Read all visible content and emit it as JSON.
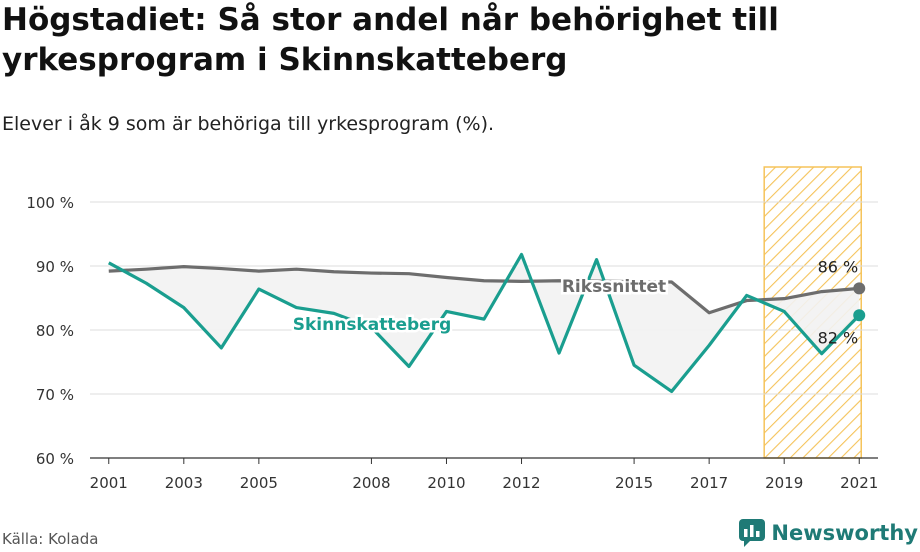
{
  "header": {
    "title": "Högstadiet: Så stor andel når behörighet till yrkesprogram i Skinnskatteberg",
    "subtitle": "Elever i åk 9 som är behöriga till yrkesprogram (%)."
  },
  "footer": {
    "source": "Källa: Kolada",
    "brand": "Newsworthy"
  },
  "colors": {
    "local": "#1a9e8f",
    "national": "#6d6d6d",
    "highlight_hatch": "#f5c35a",
    "fill": "#f2f2f2"
  },
  "chart_data": {
    "type": "line",
    "title": "Högstadiet: Så stor andel når behörighet till yrkesprogram i Skinnskatteberg",
    "subtitle": "Elever i åk 9 som är behöriga till yrkesprogram (%).",
    "ylim": [
      60,
      100
    ],
    "yticks": [
      60,
      70,
      80,
      90,
      100
    ],
    "ytick_labels": [
      "60 %",
      "70 %",
      "80 %",
      "90 %",
      "100 %"
    ],
    "xlim": [
      2000.5,
      2021.5
    ],
    "xticks": [
      2001,
      2003,
      2005,
      2008,
      2010,
      2012,
      2015,
      2017,
      2019,
      2021
    ],
    "xtick_labels": [
      "2001",
      "2003",
      "2005",
      "2008",
      "2010",
      "2012",
      "2015",
      "2017",
      "2019",
      "2021"
    ],
    "grid": "horizontal",
    "highlight_range": [
      2019,
      2021
    ],
    "series": [
      {
        "name": "Rikssnittet",
        "x": [
          2001,
          2002,
          2003,
          2004,
          2005,
          2006,
          2007,
          2008,
          2009,
          2010,
          2011,
          2012,
          2013,
          2016,
          2017,
          2018,
          2019,
          2020,
          2021
        ],
        "values": [
          89.2,
          89.5,
          89.9,
          89.6,
          89.2,
          89.5,
          89.1,
          88.9,
          88.8,
          88.2,
          87.7,
          87.6,
          87.7,
          87.5,
          82.7,
          84.6,
          84.9,
          86.0,
          86.5
        ],
        "end_label": "86 %"
      },
      {
        "name": "Skinnskatteberg",
        "x": [
          2001,
          2002,
          2003,
          2004,
          2005,
          2006,
          2007,
          2008,
          2009,
          2010,
          2011,
          2012,
          2013,
          2014,
          2015,
          2016,
          2017,
          2018,
          2019,
          2020,
          2021
        ],
        "values": [
          90.5,
          87.3,
          83.5,
          77.2,
          86.4,
          83.5,
          82.6,
          80.4,
          74.3,
          82.9,
          81.7,
          91.8,
          76.4,
          91.0,
          74.5,
          70.4,
          77.6,
          85.4,
          82.9,
          76.3,
          82.3
        ],
        "end_label": "82 %"
      }
    ]
  }
}
